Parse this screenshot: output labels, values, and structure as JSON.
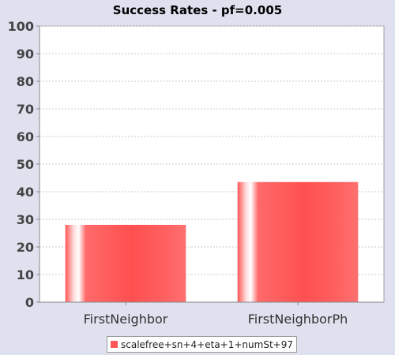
{
  "chart_data": {
    "type": "bar",
    "title": "Success Rates - pf=0.005",
    "categories": [
      "FirstNeighbor",
      "FirstNeighborPh"
    ],
    "series": [
      {
        "name": "scalefree+sn+4+eta+1+numSt+97",
        "values": [
          28,
          43.5
        ],
        "color": "#ff5555"
      }
    ],
    "ylim": [
      0,
      100
    ],
    "yticks": [
      0,
      10,
      20,
      30,
      40,
      50,
      60,
      70,
      80,
      90,
      100
    ],
    "xlabel": "",
    "ylabel": "",
    "grid": true,
    "legend_position": "bottom"
  }
}
